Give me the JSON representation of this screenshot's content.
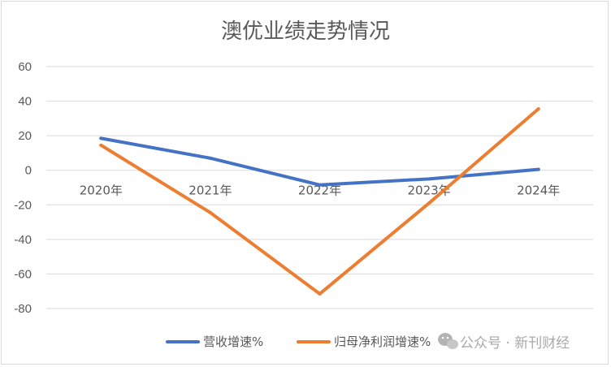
{
  "chart_data": {
    "type": "line",
    "title": "澳优业绩走势情况",
    "categories": [
      "2020年",
      "2021年",
      "2022年",
      "2023年",
      "2024年"
    ],
    "series": [
      {
        "name": "营收增速%",
        "color": "#4472c4",
        "values": [
          18.5,
          7,
          -8.5,
          -5,
          0.5
        ]
      },
      {
        "name": "归母净利润增速%",
        "color": "#ed7d31",
        "values": [
          14.5,
          -24.5,
          -71.5,
          -19,
          35.5
        ]
      }
    ],
    "ylim": [
      -80,
      60
    ],
    "y_ticks": [
      "60",
      "40",
      "20",
      "0",
      "-20",
      "-40",
      "-60",
      "-80"
    ],
    "grid": true,
    "legend_position": "bottom"
  },
  "watermark": {
    "icon": "wechat-icon",
    "text": "公众号 · 新刊财经"
  }
}
